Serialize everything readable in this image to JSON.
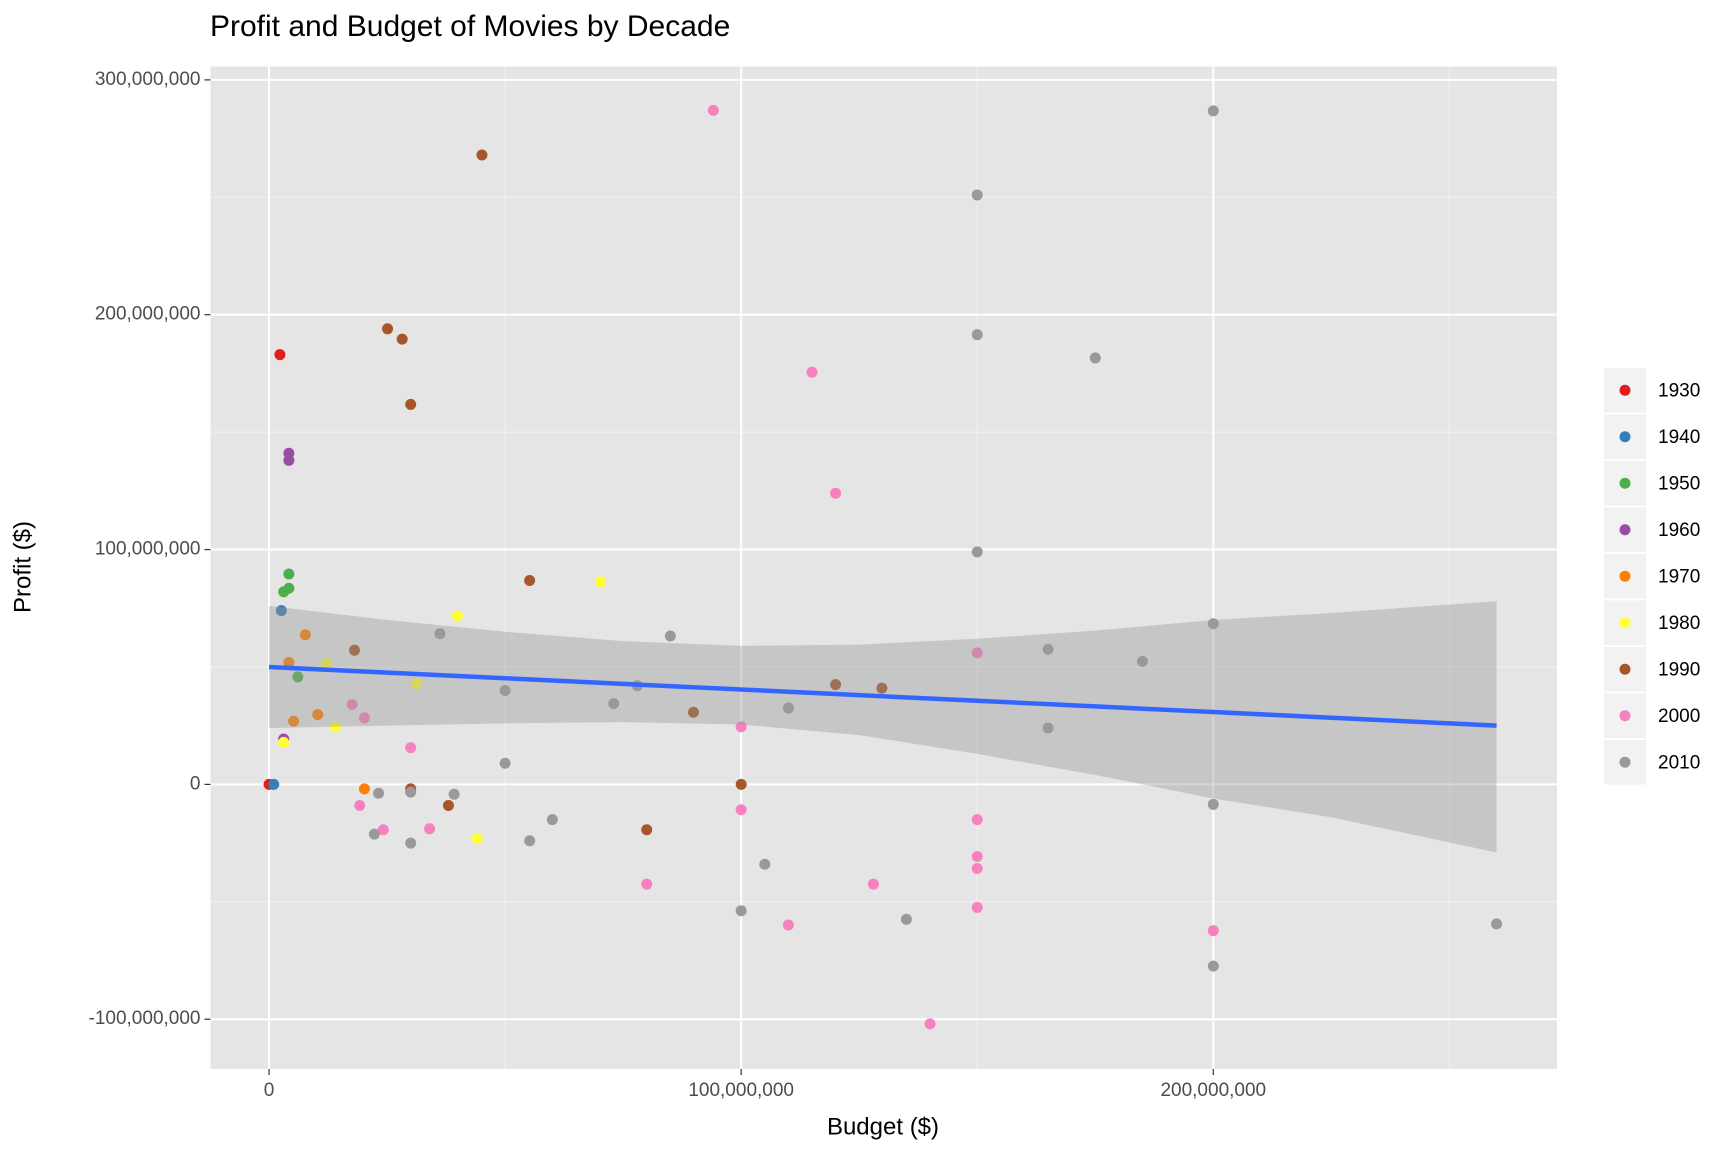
{
  "chart_data": {
    "type": "scatter",
    "title": "Profit and Budget of Movies by Decade",
    "x_label": "Budget ($)",
    "y_label": "Profit ($)",
    "xlim": [
      -12400000,
      272800000
    ],
    "ylim": [
      -121200000,
      305700000
    ],
    "xticks": [
      0,
      {
        "value": 100000000,
        "label": "100,000,000"
      },
      {
        "value": 200000000,
        "label": "200,000,000"
      }
    ],
    "yticks": [
      {
        "value": -100000000,
        "label": "-100,000,000"
      },
      0,
      {
        "value": 100000000,
        "label": "100,000,000"
      },
      {
        "value": 200000000,
        "label": "200,000,000"
      },
      {
        "value": 300000000,
        "label": "300,000,000"
      }
    ],
    "xminor": [
      50000000,
      150000000,
      250000000
    ],
    "yminor": [
      -50000000,
      50000000,
      150000000,
      250000000
    ],
    "grid": true,
    "legend": "right",
    "series": [
      {
        "name": "1930",
        "color": "#e41a1c",
        "x": [
          2300000,
          0
        ],
        "y": [
          183000000,
          0
        ]
      },
      {
        "name": "1940",
        "color": "#377eb8",
        "x": [
          2600000,
          1000000
        ],
        "y": [
          74000000,
          0
        ]
      },
      {
        "name": "1950",
        "color": "#4daf4a",
        "x": [
          4200000,
          4200000,
          3100000,
          6100000
        ],
        "y": [
          89600000,
          83500000,
          82000000,
          45800000
        ]
      },
      {
        "name": "1960",
        "color": "#984ea3",
        "x": [
          4200000,
          4200000,
          3100000
        ],
        "y": [
          141000000,
          138000000,
          19300000
        ]
      },
      {
        "name": "1970",
        "color": "#ff7f00",
        "x": [
          7700000,
          4200000,
          5200000,
          10300000,
          20200000
        ],
        "y": [
          63700000,
          51900000,
          26900000,
          29700000,
          -1900000
        ]
      },
      {
        "name": "1980",
        "color": "#ffff33",
        "x": [
          70200000,
          39900000,
          12200000,
          31200000,
          14100000,
          3100000,
          44100000
        ],
        "y": [
          86300000,
          71700000,
          51400000,
          42900000,
          24500000,
          17900000,
          -23100000
        ]
      },
      {
        "name": "1990",
        "color": "#a65628",
        "x": [
          45100000,
          25100000,
          28200000,
          30000000,
          55200000,
          18100000,
          120000000,
          129800000,
          89900000,
          100000000,
          30000000,
          38000000,
          80000000
        ],
        "y": [
          268000000,
          194000000,
          189600000,
          161800000,
          86800000,
          57100000,
          42500000,
          41000000,
          30700000,
          0,
          -1900000,
          -9000000,
          -19300000
        ]
      },
      {
        "name": "2000",
        "color": "#f781bf",
        "x": [
          94100000,
          115000000,
          120000000,
          150000000,
          17600000,
          20200000,
          30000000,
          100000000,
          19200000,
          24200000,
          34000000,
          100000000,
          150000000,
          150000000,
          150000000,
          80000000,
          128000000,
          150000000,
          110000000,
          200000000,
          140000000
        ],
        "y": [
          287000000,
          175500000,
          124000000,
          56000000,
          34000000,
          28300000,
          15600000,
          24500000,
          -9000000,
          -19300000,
          -18900000,
          -10800000,
          -15000000,
          -30700000,
          -35800000,
          -42500000,
          -42500000,
          -52400000,
          -59900000,
          -62300000,
          -102000000
        ]
      },
      {
        "name": "2010",
        "color": "#999999",
        "x": [
          200000000,
          150000000,
          150000000,
          175000000,
          150000000,
          200000000,
          36200000,
          85000000,
          165000000,
          185000000,
          78000000,
          50000000,
          73000000,
          110000000,
          165000000,
          50000000,
          23200000,
          30000000,
          39200000,
          200000000,
          60000000,
          22300000,
          55200000,
          30000000,
          105000000,
          100000000,
          135000000,
          260000000,
          200000000
        ],
        "y": [
          286800000,
          251000000,
          191500000,
          181600000,
          99000000,
          68400000,
          64200000,
          63200000,
          57500000,
          52400000,
          42000000,
          40000000,
          34400000,
          32500000,
          24000000,
          9000000,
          -3800000,
          -3300000,
          -4200000,
          -8500000,
          -15000000,
          -21200000,
          -24000000,
          -25000000,
          -34000000,
          -53800000,
          -57500000,
          -59400000,
          -77400000
        ]
      }
    ],
    "smooth": {
      "color": "#3366ff",
      "band_color": "#999999",
      "x": [
        0,
        25000000,
        50000000,
        75000000,
        100000000,
        125000000,
        150000000,
        175000000,
        200000000,
        225000000,
        260000000
      ],
      "y": [
        50000000,
        47600000,
        45200000,
        42800000,
        40400000,
        38000000,
        35600000,
        33200000,
        30800000,
        28400000,
        25000000
      ],
      "lower": [
        24000000,
        25000000,
        26000000,
        26500000,
        25500000,
        21000000,
        13000000,
        4000000,
        -6000000,
        -14000000,
        -29000000
      ],
      "upper": [
        76000000,
        70000000,
        65000000,
        61000000,
        59000000,
        59500000,
        62000000,
        65500000,
        70000000,
        73000000,
        78000000
      ]
    }
  }
}
